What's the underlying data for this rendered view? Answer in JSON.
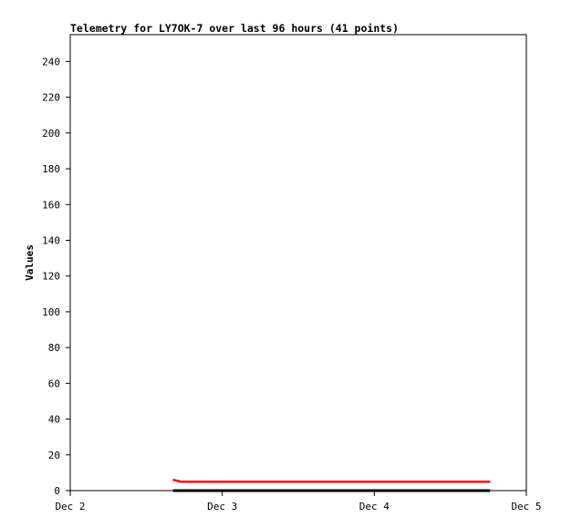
{
  "chart_data": {
    "type": "line",
    "title": "Telemetry for LY7OK-7 over last 96 hours (41 points)",
    "xlabel": "",
    "ylabel": "Values",
    "xlim": [
      "2024-12-02T00:00",
      "2024-12-05T00:00"
    ],
    "ylim": [
      0,
      255
    ],
    "grid": false,
    "x_ticks": [
      {
        "label": "Dec 2",
        "value": "2024-12-02T00:00"
      },
      {
        "label": "Dec 3",
        "value": "2024-12-03T00:00"
      },
      {
        "label": "Dec 4",
        "value": "2024-12-04T00:00"
      },
      {
        "label": "Dec 5",
        "value": "2024-12-05T00:00"
      }
    ],
    "y_ticks": [
      0,
      20,
      40,
      60,
      80,
      100,
      120,
      140,
      160,
      180,
      200,
      220,
      240
    ],
    "x": [
      "2024-12-02T16:15",
      "2024-12-02T17:30",
      "2024-12-02T18:45",
      "2024-12-02T20:00",
      "2024-12-02T21:15",
      "2024-12-02T22:30",
      "2024-12-02T23:45",
      "2024-12-03T01:00",
      "2024-12-03T02:15",
      "2024-12-03T03:30",
      "2024-12-03T04:45",
      "2024-12-03T06:00",
      "2024-12-03T07:15",
      "2024-12-03T08:30",
      "2024-12-03T09:45",
      "2024-12-03T11:00",
      "2024-12-03T12:15",
      "2024-12-03T13:30",
      "2024-12-03T14:45",
      "2024-12-03T16:00",
      "2024-12-03T17:15",
      "2024-12-03T18:30",
      "2024-12-03T19:45",
      "2024-12-03T21:00",
      "2024-12-03T22:15",
      "2024-12-03T23:30",
      "2024-12-04T00:45",
      "2024-12-04T02:00",
      "2024-12-04T03:15",
      "2024-12-04T04:30",
      "2024-12-04T05:45",
      "2024-12-04T07:00",
      "2024-12-04T08:15",
      "2024-12-04T09:30",
      "2024-12-04T10:45",
      "2024-12-04T12:00",
      "2024-12-04T13:15",
      "2024-12-04T14:30",
      "2024-12-04T15:45",
      "2024-12-04T17:00",
      "2024-12-04T18:15"
    ],
    "series": [
      {
        "color": "#ff0000",
        "values": [
          6,
          5,
          5,
          5,
          5,
          5,
          5,
          5,
          5,
          5,
          5,
          5,
          5,
          5,
          5,
          5,
          5,
          5,
          5,
          5,
          5,
          5,
          5,
          5,
          5,
          5,
          5,
          5,
          5,
          5,
          5,
          5,
          5,
          5,
          5,
          5,
          5,
          5,
          5,
          5,
          5
        ]
      },
      {
        "color": "#000000",
        "values": [
          0,
          0,
          0,
          0,
          0,
          0,
          0,
          0,
          0,
          0,
          0,
          0,
          0,
          0,
          0,
          0,
          0,
          0,
          0,
          0,
          0,
          0,
          0,
          0,
          0,
          0,
          0,
          0,
          0,
          0,
          0,
          0,
          0,
          0,
          0,
          0,
          0,
          0,
          0,
          0,
          0
        ]
      }
    ]
  }
}
